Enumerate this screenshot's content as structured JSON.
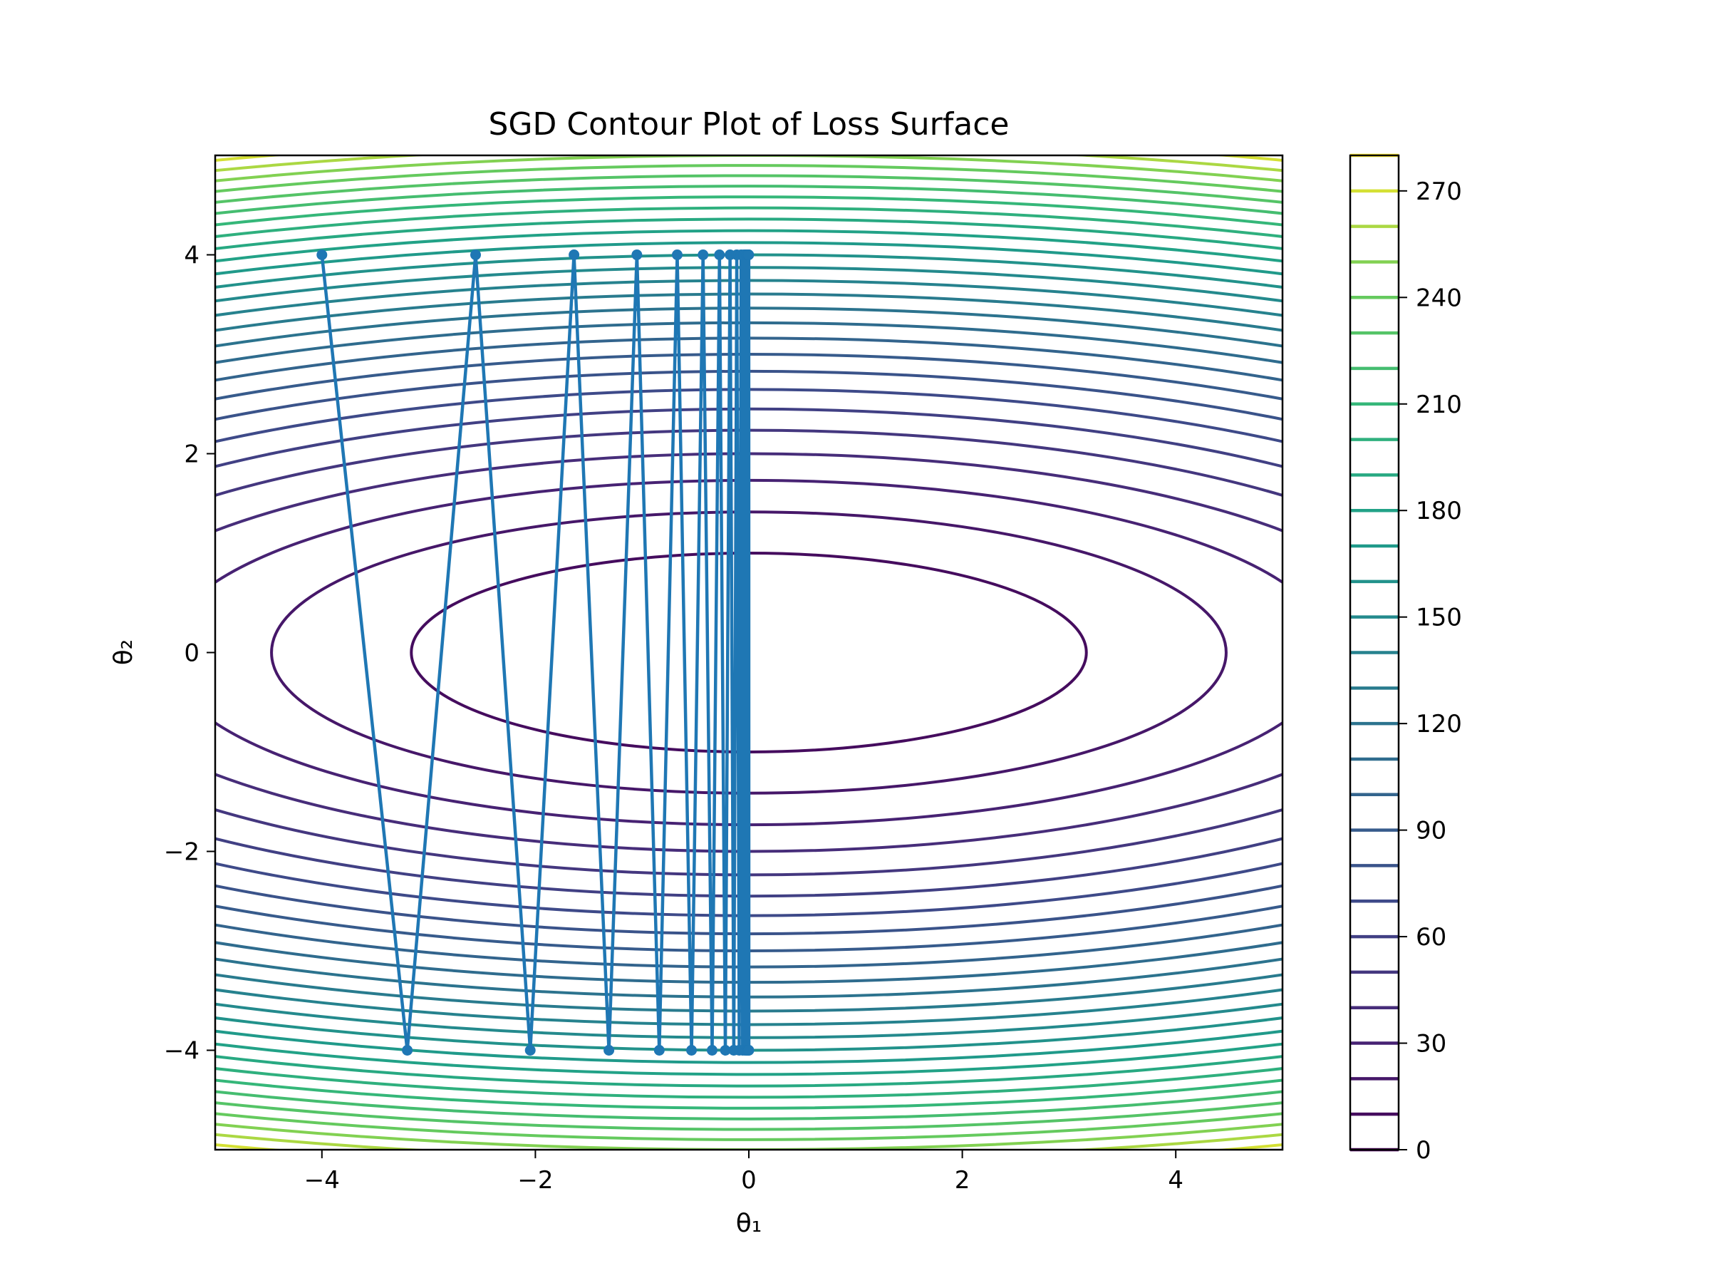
{
  "chart_data": {
    "type": "contour",
    "title": "SGD Contour Plot of Loss Surface",
    "xlabel": "θ₁",
    "ylabel": "θ₂",
    "xlim": [
      -5,
      5
    ],
    "ylim": [
      -5,
      5
    ],
    "x_ticks": [
      {
        "value": -4,
        "label": "−4"
      },
      {
        "value": -2,
        "label": "−2"
      },
      {
        "value": 0,
        "label": "0"
      },
      {
        "value": 2,
        "label": "2"
      },
      {
        "value": 4,
        "label": "4"
      }
    ],
    "y_ticks": [
      {
        "value": -4,
        "label": "−4"
      },
      {
        "value": -2,
        "label": "−2"
      },
      {
        "value": 0,
        "label": "0"
      },
      {
        "value": 2,
        "label": "2"
      },
      {
        "value": 4,
        "label": "4"
      }
    ],
    "surface": {
      "a": 1,
      "b": 10,
      "form": "a*x^2 + b*y^2"
    },
    "contour_levels": [
      0,
      10,
      20,
      30,
      40,
      50,
      60,
      70,
      80,
      90,
      100,
      110,
      120,
      130,
      140,
      150,
      160,
      170,
      180,
      190,
      200,
      210,
      220,
      230,
      240,
      250,
      260,
      270,
      280
    ],
    "colormap": "viridis",
    "colorbar": {
      "range": [
        0,
        280
      ],
      "ticks": [
        {
          "value": 0,
          "label": "0"
        },
        {
          "value": 30,
          "label": "30"
        },
        {
          "value": 60,
          "label": "60"
        },
        {
          "value": 90,
          "label": "90"
        },
        {
          "value": 120,
          "label": "120"
        },
        {
          "value": 150,
          "label": "150"
        },
        {
          "value": 180,
          "label": "180"
        },
        {
          "value": 210,
          "label": "210"
        },
        {
          "value": 240,
          "label": "240"
        },
        {
          "value": 270,
          "label": "270"
        }
      ]
    },
    "path_color": "#1f77b4",
    "sgd_path": {
      "x": [
        -4.0,
        -3.2,
        -2.56,
        -2.048,
        -1.638,
        -1.311,
        -1.049,
        -0.839,
        -0.671,
        -0.537,
        -0.429,
        -0.344,
        -0.275,
        -0.22,
        -0.176,
        -0.141,
        -0.113,
        -0.09,
        -0.072,
        -0.058,
        -0.046,
        -0.037,
        -0.03,
        -0.024,
        -0.019,
        -0.015,
        -0.012,
        -0.01,
        -0.008,
        -0.006,
        -0.005,
        -0.004,
        -0.003,
        -0.002,
        -0.001,
        0.0
      ],
      "y": [
        4,
        -4,
        4,
        -4,
        4,
        -4,
        4,
        -4,
        4,
        -4,
        4,
        -4,
        4,
        -4,
        4,
        -4,
        4,
        -4,
        4,
        -4,
        4,
        -4,
        4,
        -4,
        4,
        -4,
        4,
        -4,
        4,
        -4,
        4,
        -4,
        4,
        -4,
        4,
        -4
      ]
    }
  }
}
